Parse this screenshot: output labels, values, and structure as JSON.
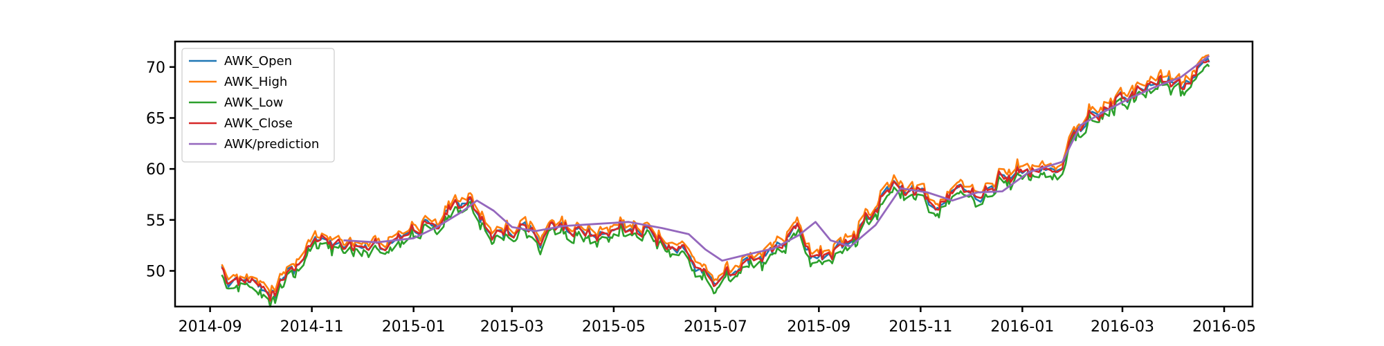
{
  "chart_data": {
    "type": "line",
    "title": "",
    "xlabel": "",
    "ylabel": "",
    "xlim": [
      "2014-08-11",
      "2016-05-18"
    ],
    "ylim": [
      46.5,
      72.5
    ],
    "x_ticks": [
      "2014-09",
      "2014-11",
      "2015-01",
      "2015-03",
      "2015-05",
      "2015-07",
      "2015-09",
      "2015-11",
      "2016-01",
      "2016-03",
      "2016-05"
    ],
    "y_ticks": [
      50,
      55,
      60,
      65,
      70
    ],
    "grid": false,
    "legend_position": "top-left",
    "colors": {
      "AWK_Open": "#1f77b4",
      "AWK_High": "#ff7f0e",
      "AWK_Low": "#2ca02c",
      "AWK_Close": "#d62728",
      "AWK/prediction": "#9467bd"
    },
    "anchors": [
      [
        "2014-09-08",
        50.2
      ],
      [
        "2014-09-12",
        49.2
      ],
      [
        "2014-09-20",
        49.0
      ],
      [
        "2014-10-01",
        48.3
      ],
      [
        "2014-10-10",
        48.0
      ],
      [
        "2014-10-15",
        49.8
      ],
      [
        "2014-10-22",
        50.3
      ],
      [
        "2014-10-28",
        51.5
      ],
      [
        "2014-11-05",
        53.0
      ],
      [
        "2014-11-12",
        52.6
      ],
      [
        "2014-11-20",
        52.4
      ],
      [
        "2014-12-01",
        52.6
      ],
      [
        "2014-12-10",
        52.8
      ],
      [
        "2014-12-18",
        52.3
      ],
      [
        "2015-01-01",
        53.6
      ],
      [
        "2015-01-10",
        54.4
      ],
      [
        "2015-01-20",
        55.5
      ],
      [
        "2015-01-28",
        56.8
      ],
      [
        "2015-02-03",
        56.7
      ],
      [
        "2015-02-12",
        55.2
      ],
      [
        "2015-02-18",
        53.2
      ],
      [
        "2015-02-28",
        53.7
      ],
      [
        "2015-03-08",
        53.8
      ],
      [
        "2015-03-18",
        52.9
      ],
      [
        "2015-03-28",
        54.4
      ],
      [
        "2015-04-10",
        54.1
      ],
      [
        "2015-04-22",
        53.7
      ],
      [
        "2015-05-05",
        54.8
      ],
      [
        "2015-05-18",
        54.2
      ],
      [
        "2015-05-28",
        53.4
      ],
      [
        "2015-06-08",
        52.3
      ],
      [
        "2015-06-18",
        50.4
      ],
      [
        "2015-06-28",
        49.1
      ],
      [
        "2015-07-03",
        48.9
      ],
      [
        "2015-07-12",
        50.2
      ],
      [
        "2015-07-22",
        51.0
      ],
      [
        "2015-08-02",
        51.4
      ],
      [
        "2015-08-12",
        52.6
      ],
      [
        "2015-08-20",
        54.5
      ],
      [
        "2015-08-27",
        51.2
      ],
      [
        "2015-09-05",
        51.5
      ],
      [
        "2015-09-12",
        52.3
      ],
      [
        "2015-09-22",
        53.6
      ],
      [
        "2015-10-02",
        55.6
      ],
      [
        "2015-10-12",
        57.5
      ],
      [
        "2015-10-18",
        58.6
      ],
      [
        "2015-10-28",
        57.5
      ],
      [
        "2015-11-10",
        56.4
      ],
      [
        "2015-11-18",
        57.0
      ],
      [
        "2015-11-28",
        57.6
      ],
      [
        "2015-12-08",
        57.3
      ],
      [
        "2015-12-18",
        58.9
      ],
      [
        "2016-01-03",
        60.2
      ],
      [
        "2016-01-14",
        60.3
      ],
      [
        "2016-01-24",
        60.8
      ],
      [
        "2016-02-01",
        63.8
      ],
      [
        "2016-02-10",
        65.2
      ],
      [
        "2016-02-20",
        65.6
      ],
      [
        "2016-03-01",
        67.1
      ],
      [
        "2016-03-10",
        67.9
      ],
      [
        "2016-03-20",
        68.9
      ],
      [
        "2016-03-28",
        68.4
      ],
      [
        "2016-04-05",
        68.0
      ],
      [
        "2016-04-12",
        69.3
      ],
      [
        "2016-04-18",
        70.2
      ],
      [
        "2016-04-22",
        70.0
      ]
    ],
    "prediction_anchors": [
      [
        "2014-11-20",
        53.0
      ],
      [
        "2014-12-10",
        52.8
      ],
      [
        "2015-01-01",
        53.2
      ],
      [
        "2015-01-15",
        54.3
      ],
      [
        "2015-01-30",
        55.8
      ],
      [
        "2015-02-08",
        56.9
      ],
      [
        "2015-02-18",
        55.9
      ],
      [
        "2015-03-01",
        54.3
      ],
      [
        "2015-03-15",
        53.9
      ],
      [
        "2015-04-01",
        54.4
      ],
      [
        "2015-04-20",
        54.6
      ],
      [
        "2015-05-10",
        54.8
      ],
      [
        "2015-05-30",
        54.2
      ],
      [
        "2015-06-15",
        53.6
      ],
      [
        "2015-06-25",
        52.1
      ],
      [
        "2015-07-05",
        51.0
      ],
      [
        "2015-07-20",
        51.6
      ],
      [
        "2015-08-05",
        52.2
      ],
      [
        "2015-08-20",
        53.5
      ],
      [
        "2015-08-30",
        54.8
      ],
      [
        "2015-09-08",
        53.0
      ],
      [
        "2015-09-20",
        52.4
      ],
      [
        "2015-10-05",
        54.5
      ],
      [
        "2015-10-20",
        58.1
      ],
      [
        "2015-11-05",
        57.7
      ],
      [
        "2015-11-20",
        56.9
      ],
      [
        "2015-12-05",
        57.7
      ],
      [
        "2015-12-20",
        57.8
      ],
      [
        "2016-01-05",
        59.7
      ],
      [
        "2016-01-25",
        60.7
      ],
      [
        "2016-02-05",
        64.3
      ],
      [
        "2016-02-20",
        65.7
      ],
      [
        "2016-03-05",
        66.9
      ],
      [
        "2016-03-20",
        68.0
      ],
      [
        "2016-04-05",
        69.0
      ],
      [
        "2016-04-22",
        71.1
      ]
    ],
    "series": [
      {
        "name": "AWK_Open",
        "key": "open"
      },
      {
        "name": "AWK_High",
        "key": "high"
      },
      {
        "name": "AWK_Low",
        "key": "low"
      },
      {
        "name": "AWK_Close",
        "key": "close"
      },
      {
        "name": "AWK/prediction",
        "key": "prediction"
      }
    ]
  }
}
